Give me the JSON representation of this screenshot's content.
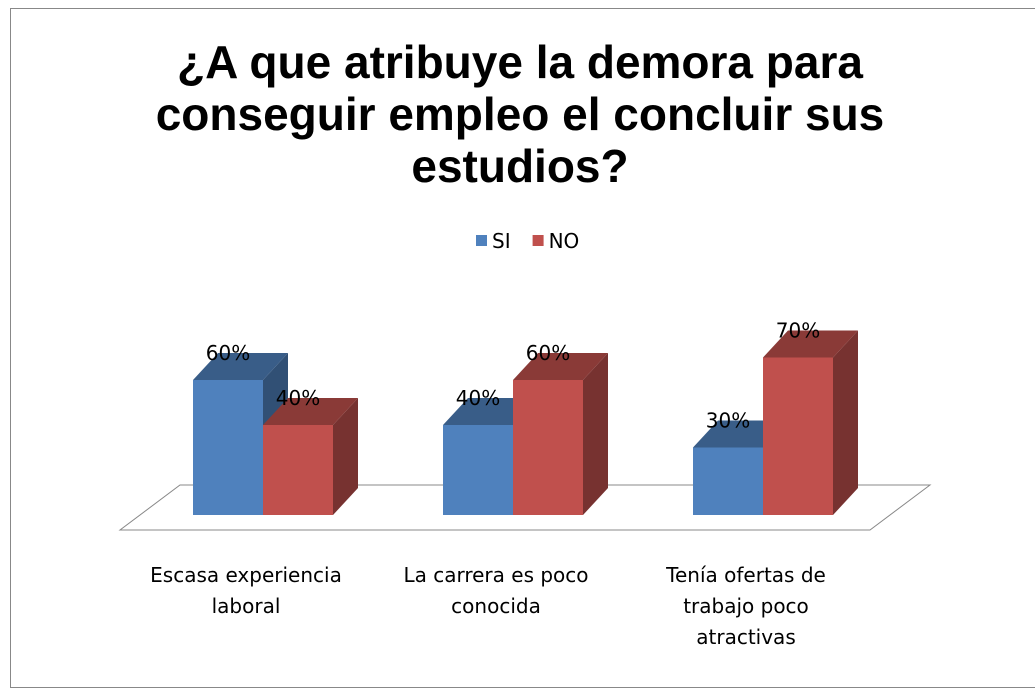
{
  "chart_data": {
    "type": "bar",
    "title": "¿A que atribuye la demora para conseguir empleo el concluir sus estudios?",
    "categories": [
      "Escasa experiencia laboral",
      "La carrera es poco conocida",
      "Tenía ofertas de trabajo poco atractivas"
    ],
    "series": [
      {
        "name": "SI",
        "color": "#4f81bd",
        "values": [
          60,
          40,
          30
        ],
        "value_labels": [
          "60%",
          "40%",
          "30%"
        ]
      },
      {
        "name": "NO",
        "color": "#c0504d",
        "values": [
          40,
          60,
          70
        ],
        "value_labels": [
          "40%",
          "60%",
          "70%"
        ]
      }
    ],
    "legend": "top"
  }
}
